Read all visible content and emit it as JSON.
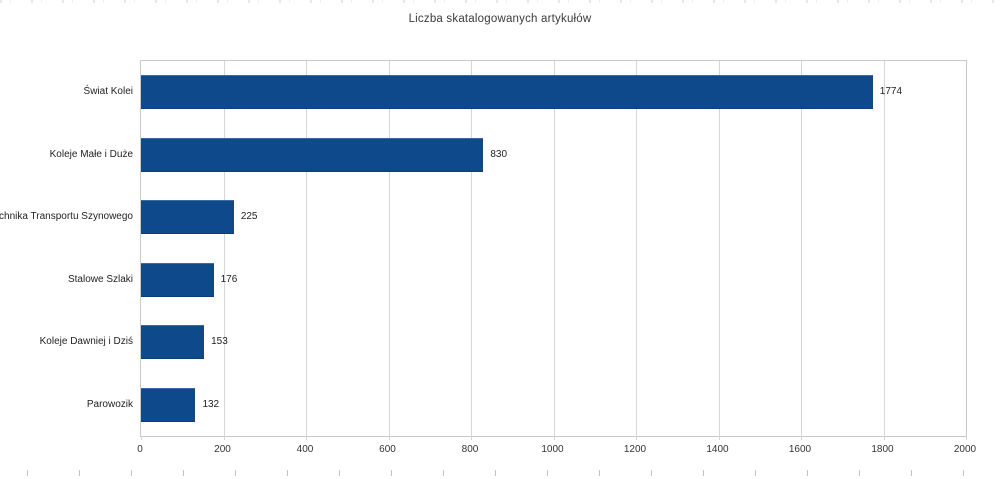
{
  "chart_data": {
    "type": "bar",
    "orientation": "horizontal",
    "title": "Liczba skatalogowanych artykułów",
    "categories": [
      "Świat Kolei",
      "Koleje Małe i Duże",
      "Technika Transportu Szynowego",
      "Stalowe Szlaki",
      "Koleje Dawniej i Dziś",
      "Parowozik"
    ],
    "values": [
      1774,
      830,
      225,
      176,
      153,
      132
    ],
    "value_labels": [
      "1774",
      "830",
      "225",
      "176",
      "153",
      "132"
    ],
    "x_ticks": [
      0,
      200,
      400,
      600,
      800,
      1000,
      1200,
      1400,
      1600,
      1800,
      2000
    ],
    "xlim": [
      0,
      2000
    ],
    "xlabel": "",
    "ylabel": "",
    "grid": "vertical",
    "legend": "none",
    "bar_color": "#0e4a8b",
    "gridline_color": "#d6d6d6",
    "plot_border_color": "#c9c9c9",
    "text_color": "#3b3b3b"
  }
}
